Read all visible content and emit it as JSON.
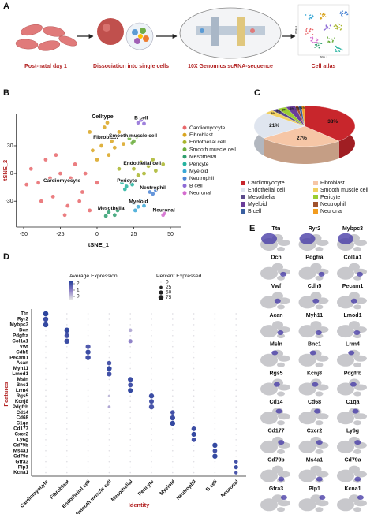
{
  "panel_labels": [
    "A",
    "B",
    "C",
    "D",
    "E"
  ],
  "workflow": {
    "steps": [
      "Post-natal day 1",
      "Dissociation into single cells",
      "10X Genomics scRNA-sequence",
      "Cell atlas"
    ],
    "atlas_axes": [
      "tSNE_1",
      "tSNE_2"
    ]
  },
  "chart_data": [
    {
      "type": "scatter",
      "legend_title": "Celltype",
      "x_label": "tSNE_1",
      "y_label": "tSNE_2",
      "xlim": [
        -55,
        57
      ],
      "ylim": [
        -58,
        65
      ],
      "xticks": [
        -50,
        -25,
        0,
        25,
        50
      ],
      "yticks": [
        -30,
        0,
        30
      ],
      "series": [
        {
          "name": "Cardiomyocyte",
          "color": "#e8676b",
          "x": [
            -45,
            -40,
            -35,
            -30,
            -25,
            -20,
            -15,
            -10,
            -5,
            0,
            -38,
            -28,
            -18,
            -8,
            -48,
            -22,
            -12,
            -32
          ],
          "y": [
            5,
            -10,
            15,
            -25,
            0,
            -35,
            10,
            -20,
            -40,
            -10,
            -30,
            20,
            -5,
            0,
            -12,
            -45,
            -30,
            -5
          ]
        },
        {
          "name": "Fibroblast",
          "color": "#d9a520",
          "x": [
            0,
            5,
            10,
            -3,
            8,
            15,
            3,
            12,
            -5,
            18,
            7,
            0
          ],
          "y": [
            40,
            50,
            35,
            25,
            20,
            45,
            30,
            28,
            45,
            32,
            55,
            15
          ]
        },
        {
          "name": "Endothelial cell",
          "color": "#a9b52c",
          "x": [
            20,
            25,
            30,
            35,
            40,
            45,
            28,
            38,
            15,
            32
          ],
          "y": [
            10,
            5,
            12,
            8,
            3,
            10,
            -2,
            15,
            5,
            0
          ]
        },
        {
          "name": "Smooth muscle cell",
          "color": "#6cae3e",
          "x": [
            22,
            25,
            27,
            24
          ],
          "y": [
            38,
            35,
            40,
            33
          ]
        },
        {
          "name": "Mesothelial",
          "color": "#2e9e6e",
          "x": [
            8,
            10,
            12,
            14,
            6
          ],
          "y": [
            -42,
            -38,
            -45,
            -40,
            -46
          ]
        },
        {
          "name": "Pericyte",
          "color": "#25b39f",
          "x": [
            17,
            20,
            22,
            19,
            24
          ],
          "y": [
            -10,
            -14,
            -8,
            -17,
            -12
          ]
        },
        {
          "name": "Myeloid",
          "color": "#39a7d6",
          "x": [
            25,
            28,
            30,
            26,
            32
          ],
          "y": [
            -32,
            -36,
            -30,
            -40,
            -35
          ]
        },
        {
          "name": "Neutrophil",
          "color": "#4b84d4",
          "x": [
            36,
            38,
            40
          ],
          "y": [
            -20,
            -22,
            -18
          ]
        },
        {
          "name": "B cell",
          "color": "#8e6bd6",
          "x": [
            28,
            30,
            32
          ],
          "y": [
            55,
            58,
            54
          ]
        },
        {
          "name": "Neuronal",
          "color": "#d46bcf",
          "x": [
            45,
            46
          ],
          "y": [
            -45,
            -43
          ]
        }
      ]
    },
    {
      "type": "pie",
      "categories": [
        "Cardiomyocyte",
        "Fibroblast",
        "Endothelial cell",
        "Smooth muscle cell",
        "Mesothelial",
        "Pericyte",
        "Myeloid",
        "Neutrophil",
        "B cell",
        "Neuronal"
      ],
      "values": [
        38,
        27,
        21,
        3,
        2,
        3,
        3,
        1,
        1,
        1
      ],
      "value_labels": [
        "38%",
        "27%",
        "21%",
        "3%",
        "2%",
        "3%",
        "3%",
        "1%",
        "1%",
        "1%"
      ],
      "colors": [
        "#c8262c",
        "#f6c6a6",
        "#dfe5ef",
        "#f1d060",
        "#5b4a8b",
        "#9acd32",
        "#6a3d9a",
        "#a0522d",
        "#3a5fa0",
        "#f29c1f"
      ]
    },
    {
      "type": "dot",
      "x_label": "Identity",
      "y_label": "Features",
      "categories": [
        "Cardiomyocyte",
        "Fibroblast",
        "Endothelial cell",
        "Smooth muscle cell",
        "Mesothelial",
        "Pericyte",
        "Myeloid",
        "Neutrophil",
        "B cell",
        "Neuronal"
      ],
      "features": [
        "Ttn",
        "Ryr2",
        "Mybpc3",
        "Dcn",
        "Pdgfra",
        "Col1a1",
        "Vwf",
        "Cdh5",
        "Pecam1",
        "Acan",
        "Myh11",
        "Lmod1",
        "Msln",
        "Bnc1",
        "Lrrn4",
        "Rgs5",
        "Kcnj8",
        "Pdgfrb",
        "Cd14",
        "Cd68",
        "C1qa",
        "Cd177",
        "Cxcr2",
        "Ly6g",
        "Cd79b",
        "Ms4a1",
        "Cd79a",
        "Gfra3",
        "Plp1",
        "Kcna1"
      ],
      "color_legend_title": "Average Expression",
      "color_lim": [
        -0.5,
        2.5
      ],
      "color_ticks": [
        2,
        1,
        0
      ],
      "size_legend_title": "Percent Expressed",
      "size_ticks": [
        0,
        25,
        50,
        75
      ],
      "values": [
        [
          80,
          5,
          5,
          5,
          5,
          5,
          5,
          5,
          5,
          5
        ],
        [
          75,
          5,
          5,
          5,
          5,
          5,
          5,
          5,
          5,
          5
        ],
        [
          78,
          5,
          5,
          5,
          5,
          5,
          5,
          5,
          5,
          5
        ],
        [
          5,
          80,
          5,
          5,
          40,
          5,
          5,
          5,
          5,
          5
        ],
        [
          5,
          70,
          5,
          5,
          5,
          5,
          5,
          5,
          5,
          5
        ],
        [
          5,
          80,
          5,
          5,
          50,
          5,
          5,
          5,
          5,
          5
        ],
        [
          5,
          5,
          70,
          5,
          5,
          5,
          5,
          5,
          5,
          5
        ],
        [
          5,
          5,
          75,
          5,
          5,
          5,
          5,
          5,
          5,
          5
        ],
        [
          5,
          5,
          78,
          5,
          5,
          5,
          5,
          5,
          5,
          5
        ],
        [
          5,
          5,
          5,
          60,
          5,
          5,
          5,
          5,
          5,
          5
        ],
        [
          5,
          5,
          5,
          75,
          5,
          5,
          5,
          5,
          5,
          5
        ],
        [
          5,
          5,
          5,
          70,
          5,
          5,
          5,
          5,
          5,
          5
        ],
        [
          5,
          5,
          5,
          5,
          75,
          5,
          5,
          5,
          5,
          5
        ],
        [
          5,
          5,
          5,
          5,
          65,
          5,
          5,
          5,
          5,
          5
        ],
        [
          5,
          5,
          5,
          5,
          70,
          5,
          5,
          5,
          5,
          5
        ],
        [
          5,
          5,
          5,
          20,
          5,
          75,
          5,
          5,
          5,
          5
        ],
        [
          5,
          5,
          5,
          5,
          5,
          65,
          5,
          5,
          5,
          5
        ],
        [
          5,
          5,
          5,
          25,
          5,
          75,
          5,
          5,
          5,
          5
        ],
        [
          5,
          5,
          5,
          5,
          5,
          5,
          60,
          5,
          5,
          5
        ],
        [
          5,
          5,
          5,
          5,
          5,
          5,
          75,
          5,
          5,
          5
        ],
        [
          5,
          5,
          5,
          5,
          5,
          5,
          78,
          5,
          5,
          5
        ],
        [
          5,
          5,
          5,
          5,
          5,
          5,
          5,
          65,
          5,
          5
        ],
        [
          5,
          5,
          5,
          5,
          5,
          5,
          5,
          70,
          5,
          5
        ],
        [
          5,
          5,
          5,
          5,
          5,
          5,
          5,
          60,
          5,
          5
        ],
        [
          5,
          5,
          5,
          5,
          5,
          5,
          5,
          5,
          75,
          5
        ],
        [
          5,
          5,
          5,
          5,
          5,
          5,
          5,
          5,
          60,
          5
        ],
        [
          5,
          5,
          5,
          5,
          5,
          5,
          5,
          5,
          75,
          5
        ],
        [
          5,
          5,
          5,
          5,
          5,
          5,
          5,
          5,
          5,
          40
        ],
        [
          5,
          5,
          5,
          5,
          5,
          5,
          5,
          5,
          5,
          50
        ],
        [
          5,
          5,
          5,
          5,
          5,
          5,
          5,
          5,
          5,
          35
        ]
      ],
      "expression": [
        [
          2.3,
          -0.4,
          -0.4,
          -0.4,
          -0.4,
          -0.4,
          -0.4,
          -0.4,
          -0.4,
          -0.4
        ],
        [
          2.1,
          -0.4,
          -0.4,
          -0.4,
          -0.4,
          -0.4,
          -0.4,
          -0.4,
          -0.4,
          -0.4
        ],
        [
          2.2,
          -0.4,
          -0.4,
          -0.4,
          -0.4,
          -0.4,
          -0.4,
          -0.4,
          -0.4,
          -0.4
        ],
        [
          -0.4,
          2.2,
          -0.4,
          -0.4,
          0.3,
          -0.4,
          -0.4,
          -0.4,
          -0.4,
          -0.4
        ],
        [
          -0.4,
          2.0,
          -0.4,
          -0.4,
          -0.4,
          -0.4,
          -0.4,
          -0.4,
          -0.4,
          -0.4
        ],
        [
          -0.4,
          2.1,
          -0.4,
          -0.4,
          0.9,
          -0.4,
          -0.4,
          -0.4,
          -0.4,
          -0.4
        ],
        [
          -0.4,
          -0.4,
          1.8,
          -0.4,
          -0.4,
          -0.4,
          -0.4,
          -0.4,
          -0.4,
          -0.4
        ],
        [
          -0.4,
          -0.4,
          2.1,
          -0.4,
          -0.4,
          -0.4,
          -0.4,
          -0.4,
          -0.4,
          -0.4
        ],
        [
          -0.4,
          -0.4,
          2.0,
          -0.4,
          -0.4,
          -0.4,
          -0.4,
          -0.4,
          -0.4,
          -0.4
        ],
        [
          -0.4,
          -0.4,
          -0.4,
          1.9,
          -0.4,
          -0.4,
          -0.4,
          -0.4,
          -0.4,
          -0.4
        ],
        [
          -0.4,
          -0.4,
          -0.4,
          2.2,
          -0.4,
          -0.4,
          -0.4,
          -0.4,
          -0.4,
          -0.4
        ],
        [
          -0.4,
          -0.4,
          -0.4,
          2.0,
          -0.4,
          -0.4,
          -0.4,
          -0.4,
          -0.4,
          -0.4
        ],
        [
          -0.4,
          -0.4,
          -0.4,
          -0.4,
          2.1,
          -0.4,
          -0.4,
          -0.4,
          -0.4,
          -0.4
        ],
        [
          -0.4,
          -0.4,
          -0.4,
          -0.4,
          2.0,
          -0.4,
          -0.4,
          -0.4,
          -0.4,
          -0.4
        ],
        [
          -0.4,
          -0.4,
          -0.4,
          -0.4,
          2.2,
          -0.4,
          -0.4,
          -0.4,
          -0.4,
          -0.4
        ],
        [
          -0.4,
          -0.4,
          -0.4,
          0.1,
          -0.4,
          2.1,
          -0.4,
          -0.4,
          -0.4,
          -0.4
        ],
        [
          -0.4,
          -0.4,
          -0.4,
          -0.4,
          -0.4,
          2.0,
          -0.4,
          -0.4,
          -0.4,
          -0.4
        ],
        [
          -0.4,
          -0.4,
          -0.4,
          0.4,
          -0.4,
          1.9,
          -0.4,
          -0.4,
          -0.4,
          -0.4
        ],
        [
          -0.4,
          -0.4,
          -0.4,
          -0.4,
          -0.4,
          -0.4,
          2.0,
          -0.4,
          -0.4,
          -0.4
        ],
        [
          -0.4,
          -0.4,
          -0.4,
          -0.4,
          -0.4,
          -0.4,
          2.1,
          -0.4,
          -0.4,
          -0.4
        ],
        [
          -0.4,
          -0.4,
          -0.4,
          -0.4,
          -0.4,
          -0.4,
          2.2,
          -0.4,
          -0.4,
          -0.4
        ],
        [
          -0.4,
          -0.4,
          -0.4,
          -0.4,
          -0.4,
          -0.4,
          -0.4,
          2.1,
          -0.4,
          -0.4
        ],
        [
          -0.4,
          -0.4,
          -0.4,
          -0.4,
          -0.4,
          -0.4,
          -0.4,
          2.2,
          -0.4,
          -0.4
        ],
        [
          -0.4,
          -0.4,
          -0.4,
          -0.4,
          -0.4,
          -0.4,
          -0.4,
          2.0,
          -0.4,
          -0.4
        ],
        [
          -0.4,
          -0.4,
          -0.4,
          -0.4,
          -0.4,
          -0.4,
          -0.4,
          -0.4,
          2.2,
          -0.4
        ],
        [
          -0.4,
          -0.4,
          -0.4,
          -0.4,
          -0.4,
          -0.4,
          -0.4,
          -0.4,
          2.0,
          -0.4
        ],
        [
          -0.4,
          -0.4,
          -0.4,
          -0.4,
          -0.4,
          -0.4,
          -0.4,
          -0.4,
          2.2,
          -0.4
        ],
        [
          -0.4,
          -0.4,
          -0.4,
          -0.4,
          -0.4,
          -0.4,
          -0.4,
          -0.4,
          -0.4,
          2.0
        ],
        [
          -0.4,
          -0.4,
          -0.4,
          -0.4,
          -0.4,
          -0.4,
          -0.4,
          -0.4,
          -0.4,
          2.1
        ],
        [
          -0.4,
          -0.4,
          -0.4,
          -0.4,
          -0.4,
          -0.4,
          -0.4,
          -0.4,
          -0.4,
          1.9
        ]
      ]
    }
  ],
  "feature_plots": {
    "genes": [
      "Ttn",
      "Ryr2",
      "Mybpc3",
      "Dcn",
      "Pdgfra",
      "Col1a1",
      "Vwf",
      "Cdh5",
      "Pecam1",
      "Acan",
      "Myh11",
      "Lmod1",
      "Msln",
      "Bnc1",
      "Lrrn4",
      "Rgs5",
      "Kcnj8",
      "Pdgfrb",
      "Cd14",
      "Cd68",
      "C1qa",
      "Cd177",
      "Cxcr2",
      "Ly6g",
      "Cd79b",
      "Ms4a1",
      "Cd79a",
      "Gfra3",
      "Plp1",
      "Kcna1"
    ]
  }
}
